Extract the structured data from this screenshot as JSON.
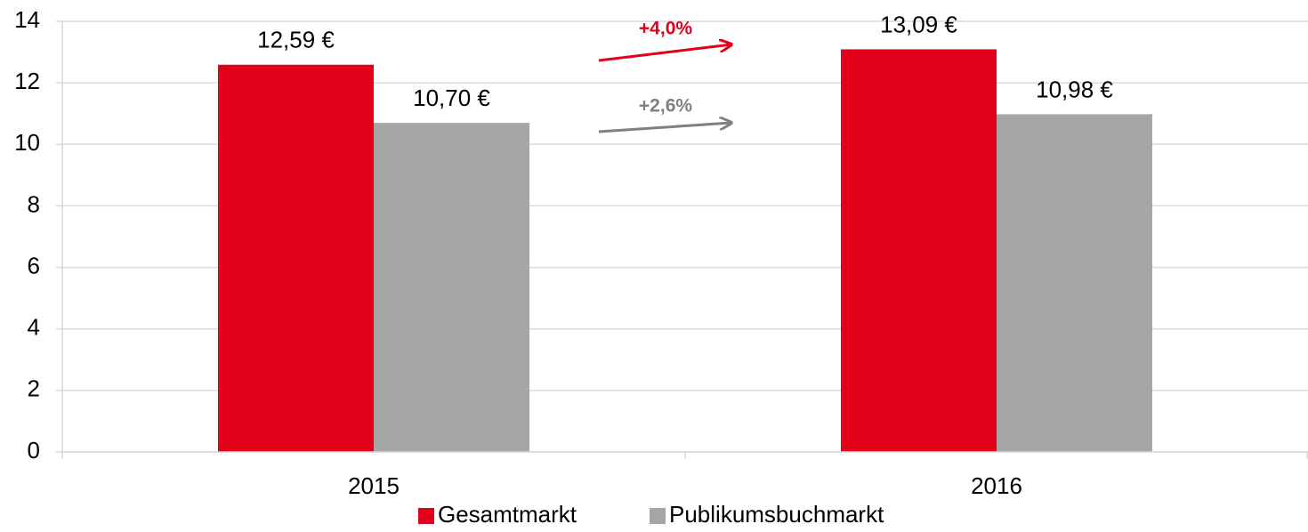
{
  "chart_data": {
    "type": "bar",
    "categories": [
      "2015",
      "2016"
    ],
    "series": [
      {
        "name": "Gesamtmarkt",
        "color": "#e2001a",
        "values": [
          12.59,
          13.09
        ],
        "value_labels": [
          "12,59 €",
          "13,09 €"
        ]
      },
      {
        "name": "Publikumsbuchmarkt",
        "color": "#a6a6a6",
        "values": [
          10.7,
          10.98
        ],
        "value_labels": [
          "10,70 €",
          "10,98 €"
        ]
      }
    ],
    "annotations": [
      {
        "text": "+4,0%",
        "color": "#e2001a"
      },
      {
        "text": "+2,6%",
        "color": "#808080"
      }
    ],
    "ylim": [
      0,
      14
    ],
    "yticks": [
      0,
      2,
      4,
      6,
      8,
      10,
      12,
      14
    ],
    "grid": true,
    "legend": "bottom"
  }
}
